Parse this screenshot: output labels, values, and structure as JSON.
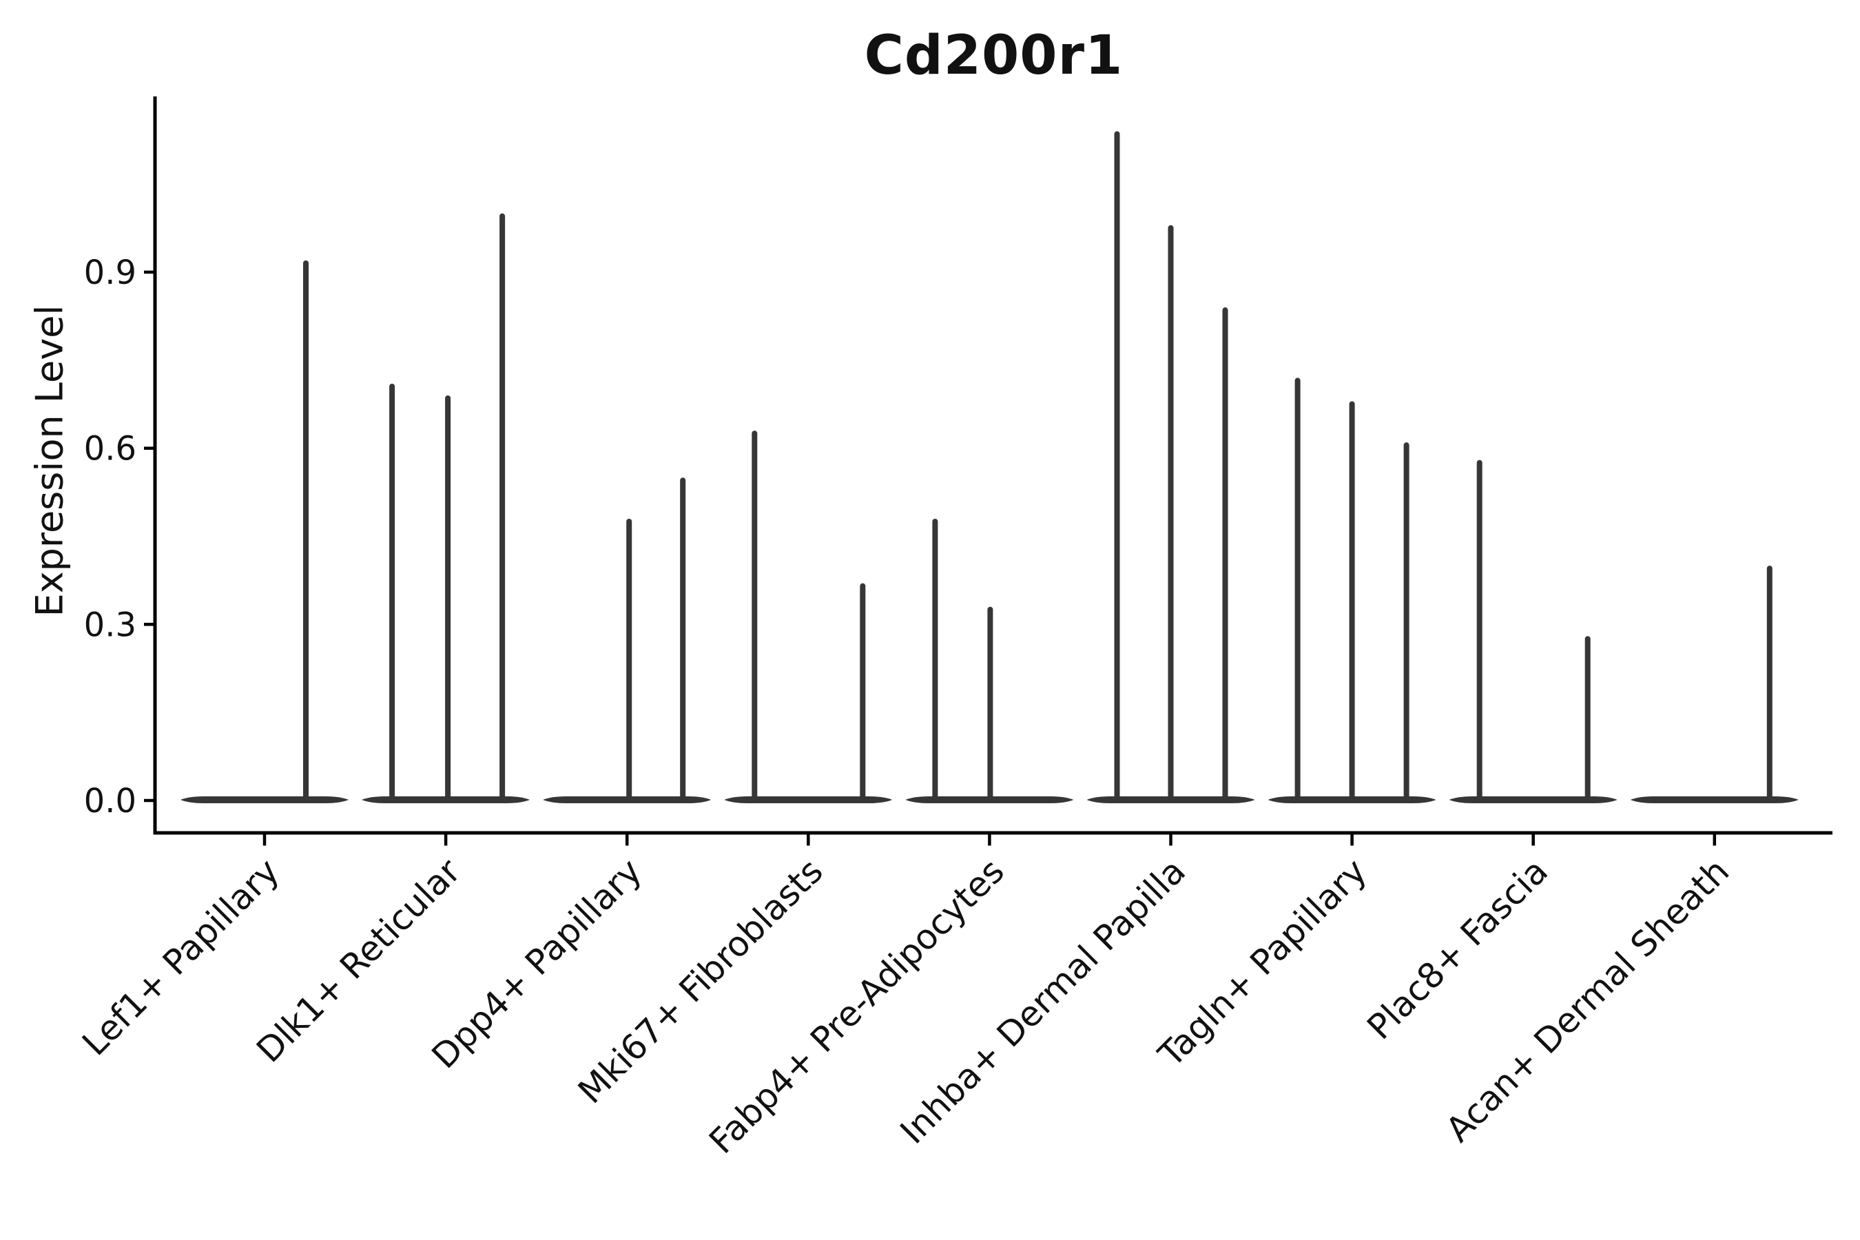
{
  "title": "Cd200r1",
  "axes": {
    "ylabel": "Expression Level",
    "ytick_labels": [
      "0.0",
      "0.3",
      "0.6",
      "0.9"
    ]
  },
  "chart_data": {
    "type": "violin",
    "title": "Cd200r1",
    "xlabel": "",
    "ylabel": "Expression Level",
    "yticks": [
      0.0,
      0.3,
      0.6,
      0.9
    ],
    "ylim": [
      -0.055,
      1.2
    ],
    "grid": false,
    "legend": null,
    "categories": [
      "Lef1+ Papillary",
      "Dlk1+ Reticular",
      "Dpp4+ Papillary",
      "Mki67+ Fibroblasts",
      "Fabp4+ Pre-Adipocytes",
      "Inhba+ Dermal Papilla",
      "Tagln+ Papillary",
      "Plac8+ Fascia",
      "Acan+ Dermal Sheath"
    ],
    "violins": [
      {
        "category": "Lef1+ Papillary",
        "sub_violins": [
          {
            "offset": 60,
            "peak": 0.92
          }
        ]
      },
      {
        "category": "Dlk1+ Reticular",
        "sub_violins": [
          {
            "offset": -78,
            "peak": 0.71
          },
          {
            "offset": 3,
            "peak": 0.69
          },
          {
            "offset": 82,
            "peak": 1.0
          }
        ]
      },
      {
        "category": "Dpp4+ Papillary",
        "sub_violins": [
          {
            "offset": 3,
            "peak": 0.48
          },
          {
            "offset": 81,
            "peak": 0.55
          }
        ]
      },
      {
        "category": "Mki67+ Fibroblasts",
        "sub_violins": [
          {
            "offset": -78,
            "peak": 0.63
          },
          {
            "offset": 79,
            "peak": 0.37
          }
        ]
      },
      {
        "category": "Fabp4+ Pre-Adipocytes",
        "sub_violins": [
          {
            "offset": -79,
            "peak": 0.48
          },
          {
            "offset": 1,
            "peak": 0.33
          }
        ]
      },
      {
        "category": "Inhba+ Dermal Papilla",
        "sub_violins": [
          {
            "offset": -78,
            "peak": 1.14
          },
          {
            "offset": 0,
            "peak": 0.98
          },
          {
            "offset": 79,
            "peak": 0.84
          }
        ]
      },
      {
        "category": "Tagln+ Papillary",
        "sub_violins": [
          {
            "offset": -79,
            "peak": 0.72
          },
          {
            "offset": 0,
            "peak": 0.68
          },
          {
            "offset": 79,
            "peak": 0.61
          }
        ]
      },
      {
        "category": "Plac8+ Fascia",
        "sub_violins": [
          {
            "offset": -78,
            "peak": 0.58
          },
          {
            "offset": 79,
            "peak": 0.28
          }
        ]
      },
      {
        "category": "Acan+ Dermal Sheath",
        "sub_violins": [
          {
            "offset": 80,
            "peak": 0.4
          }
        ]
      }
    ],
    "colors": {
      "violin": "#363636",
      "axis": "#000000",
      "text": "#111111"
    }
  }
}
